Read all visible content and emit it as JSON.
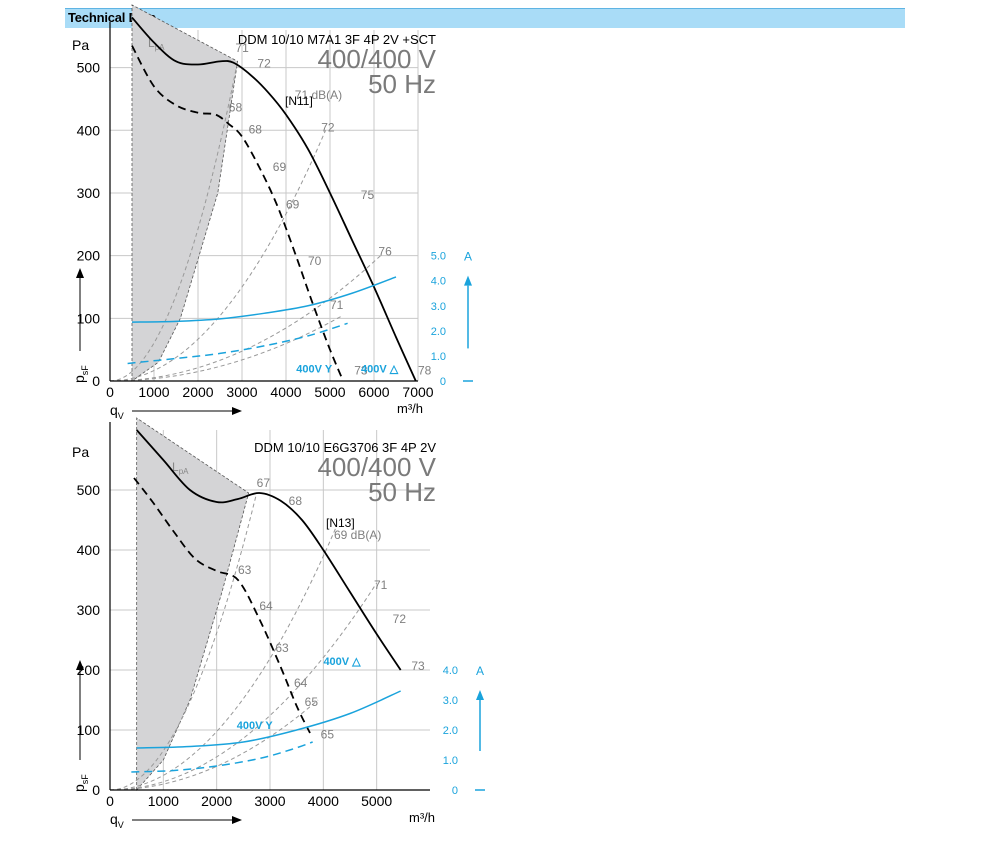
{
  "header": {
    "title": "Technical Data"
  },
  "chart_data": [
    {
      "type": "line",
      "model": "DDM 10/10 M7A1 3F 4P 2V +SCT",
      "voltage": "400/400 V",
      "frequency": "50 Hz",
      "ylabel_main": "Pa",
      "ylabel_var": "p",
      "ylabel_sub": "sF",
      "xlabel_var": "q",
      "xlabel_sub": "V",
      "xunit": "m³/h",
      "current_unit": "A",
      "xlim": [
        0,
        7000
      ],
      "ylim": [
        0,
        560
      ],
      "xticks": [
        "0",
        "1000",
        "2000",
        "3000",
        "4000",
        "5000",
        "6000",
        "7000"
      ],
      "xtick_values": [
        0,
        1000,
        2000,
        3000,
        4000,
        5000,
        6000,
        7000
      ],
      "yticks": [
        "0",
        "100",
        "200",
        "300",
        "400",
        "500"
      ],
      "ytick_values": [
        0,
        100,
        200,
        300,
        400,
        500
      ],
      "current_ticks": [
        "0",
        "1.0",
        "2.0",
        "3.0",
        "4.0",
        "5.0"
      ],
      "current_tick_values": [
        0,
        1,
        2,
        3,
        4,
        5
      ],
      "current_scale_max_pa": 200,
      "lpa_label": "L",
      "lpa_sub": "pA",
      "curve_label": "[N11]",
      "series": [
        {
          "name": "400V △",
          "style": "solid",
          "x": [
            500,
            1000,
            1500,
            2000,
            2500,
            2800,
            3200,
            3600,
            4000,
            4500,
            5000,
            5500,
            6000,
            6500,
            6950
          ],
          "y": [
            580,
            540,
            510,
            505,
            510,
            508,
            488,
            460,
            425,
            370,
            300,
            225,
            150,
            70,
            0
          ]
        },
        {
          "name": "400V Y",
          "style": "dashed",
          "x": [
            500,
            1000,
            1500,
            2000,
            2400,
            2700,
            3000,
            3400,
            3800,
            4200,
            4600,
            5000,
            5300
          ],
          "y": [
            535,
            470,
            440,
            428,
            425,
            410,
            390,
            340,
            280,
            205,
            125,
            50,
            0
          ]
        }
      ],
      "current_series": [
        {
          "name": "400V △",
          "style": "solid",
          "x": [
            500,
            1500,
            2500,
            3500,
            4500,
            5500,
            6500
          ],
          "y": [
            2.35,
            2.38,
            2.48,
            2.7,
            3.0,
            3.5,
            4.15
          ]
        },
        {
          "name": "400V Y",
          "style": "dashed",
          "x": [
            400,
            1500,
            2500,
            3500,
            4500,
            5400
          ],
          "y": [
            0.7,
            0.9,
            1.1,
            1.4,
            1.8,
            2.3
          ]
        }
      ],
      "system_curve_labels": [
        {
          "text": "71",
          "x": 2850,
          "y": 525
        },
        {
          "text": "72",
          "x": 3350,
          "y": 500
        },
        {
          "text": "71 dB(A)",
          "x": 4200,
          "y": 450
        },
        {
          "text": "72",
          "x": 4800,
          "y": 398
        },
        {
          "text": "75",
          "x": 5700,
          "y": 290
        },
        {
          "text": "76",
          "x": 6100,
          "y": 200
        },
        {
          "text": "78",
          "x": 7000,
          "y": 10
        },
        {
          "text": "68",
          "x": 2700,
          "y": 430
        },
        {
          "text": "68",
          "x": 3150,
          "y": 395
        },
        {
          "text": "69",
          "x": 3700,
          "y": 335
        },
        {
          "text": "69",
          "x": 4000,
          "y": 275
        },
        {
          "text": "70",
          "x": 4500,
          "y": 185
        },
        {
          "text": "71",
          "x": 5000,
          "y": 115
        },
        {
          "text": "73",
          "x": 5550,
          "y": 10
        }
      ],
      "system_curves": [
        {
          "x_end": 2900,
          "y_end": 510
        },
        {
          "x_end": 4900,
          "y_end": 400
        },
        {
          "x_end": 6150,
          "y_end": 200
        },
        {
          "x_end": 5300,
          "y_end": 105
        }
      ],
      "shaded_left": [
        [
          500,
          0
        ],
        [
          500,
          600
        ],
        [
          2900,
          510
        ],
        [
          2450,
          300
        ],
        [
          1600,
          100
        ],
        [
          1100,
          30
        ],
        [
          500,
          0
        ]
      ],
      "mode_labels": [
        {
          "text": "400V",
          "symbol": "Y",
          "x": 5050,
          "y": 10
        },
        {
          "text": "400V",
          "symbol": "△",
          "x": 6550,
          "y": 10
        }
      ]
    },
    {
      "type": "line",
      "model": "DDM 10/10 E6G3706 3F 4P 2V",
      "voltage": "400/400 V",
      "frequency": "50 Hz",
      "ylabel_main": "Pa",
      "ylabel_var": "p",
      "ylabel_sub": "sF",
      "xlabel_var": "q",
      "xlabel_sub": "V",
      "xunit": "m³/h",
      "current_unit": "A",
      "xlim": [
        0,
        6000
      ],
      "ylim": [
        0,
        600
      ],
      "xticks": [
        "0",
        "1000",
        "2000",
        "3000",
        "4000",
        "5000"
      ],
      "xtick_values": [
        0,
        1000,
        2000,
        3000,
        4000,
        5000
      ],
      "yticks": [
        "0",
        "100",
        "200",
        "300",
        "400",
        "500"
      ],
      "ytick_values": [
        0,
        100,
        200,
        300,
        400,
        500
      ],
      "current_ticks": [
        "0",
        "1.0",
        "2.0",
        "3.0",
        "4.0"
      ],
      "current_tick_values": [
        0,
        1,
        2,
        3,
        4
      ],
      "current_scale_max_pa": 200,
      "lpa_label": "L",
      "lpa_sub": "pA",
      "curve_label": "[N13]",
      "series": [
        {
          "name": "400V △",
          "style": "solid",
          "x": [
            500,
            1000,
            1500,
            2000,
            2400,
            2800,
            3200,
            3600,
            4000,
            4500,
            5000,
            5450
          ],
          "y": [
            600,
            550,
            500,
            480,
            485,
            495,
            482,
            450,
            400,
            330,
            260,
            200
          ]
        },
        {
          "name": "400V Y",
          "style": "dashed",
          "x": [
            450,
            800,
            1200,
            1600,
            2000,
            2400,
            2800,
            3200,
            3500,
            3750
          ],
          "y": [
            520,
            480,
            430,
            385,
            365,
            350,
            285,
            205,
            140,
            95
          ]
        }
      ],
      "current_series": [
        {
          "name": "400V △",
          "style": "solid",
          "x": [
            500,
            1500,
            2500,
            3500,
            4500,
            5450
          ],
          "y": [
            1.4,
            1.45,
            1.6,
            2.0,
            2.55,
            3.3
          ]
        },
        {
          "name": "400V Y",
          "style": "dashed",
          "x": [
            400,
            1200,
            2000,
            2800,
            3400,
            3800
          ],
          "y": [
            0.6,
            0.65,
            0.8,
            1.05,
            1.35,
            1.6
          ]
        }
      ],
      "system_curve_labels": [
        {
          "text": "67",
          "x": 2750,
          "y": 505
        },
        {
          "text": "68",
          "x": 3350,
          "y": 475
        },
        {
          "text": "69 dB(A)",
          "x": 4200,
          "y": 418
        },
        {
          "text": "71",
          "x": 4950,
          "y": 335
        },
        {
          "text": "72",
          "x": 5300,
          "y": 278
        },
        {
          "text": "73",
          "x": 5650,
          "y": 200
        },
        {
          "text": "63",
          "x": 2400,
          "y": 360
        },
        {
          "text": "64",
          "x": 2800,
          "y": 300
        },
        {
          "text": "63",
          "x": 3100,
          "y": 230
        },
        {
          "text": "64",
          "x": 3450,
          "y": 172
        },
        {
          "text": "65",
          "x": 3650,
          "y": 140
        },
        {
          "text": "65",
          "x": 3950,
          "y": 86
        }
      ],
      "system_curves": [
        {
          "x_end": 2750,
          "y_end": 495
        },
        {
          "x_end": 4250,
          "y_end": 440
        },
        {
          "x_end": 5000,
          "y_end": 345
        },
        {
          "x_end": 3900,
          "y_end": 150
        }
      ],
      "shaded_left": [
        [
          500,
          0
        ],
        [
          500,
          620
        ],
        [
          2600,
          495
        ],
        [
          2100,
          330
        ],
        [
          1500,
          150
        ],
        [
          1000,
          50
        ],
        [
          500,
          0
        ]
      ],
      "mode_labels": [
        {
          "text": "400V",
          "symbol": "△",
          "x": 4700,
          "y": 205
        },
        {
          "text": "400V",
          "symbol": "Y",
          "x": 3050,
          "y": 98
        }
      ]
    }
  ]
}
